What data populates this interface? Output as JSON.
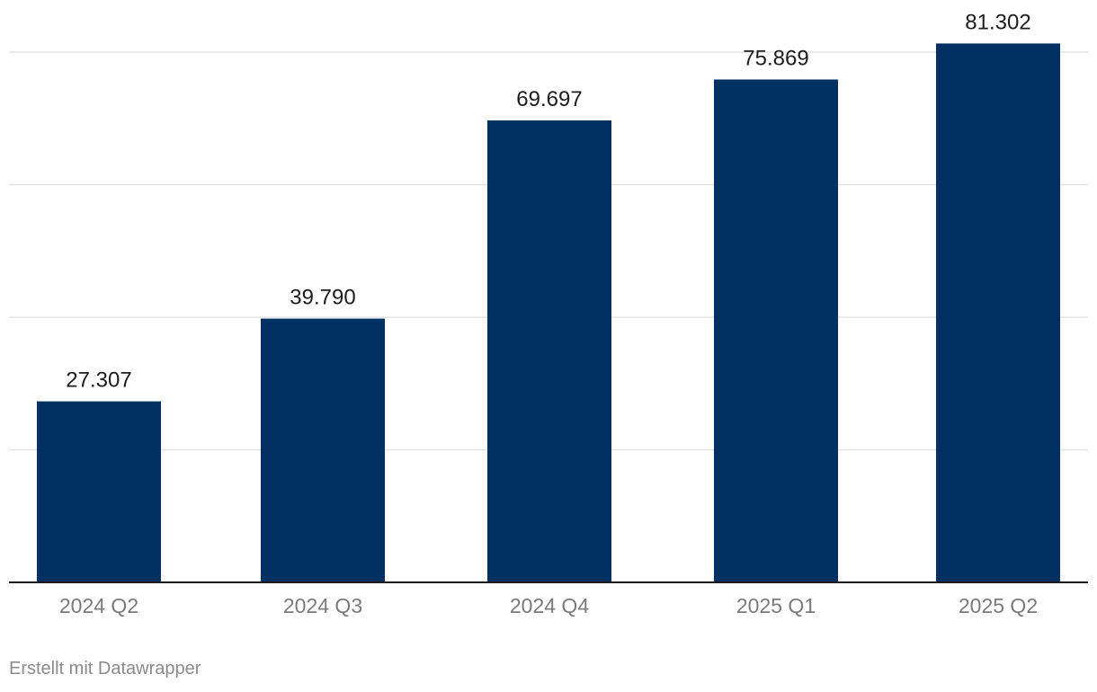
{
  "chart_data": {
    "type": "bar",
    "title": "",
    "xlabel": "",
    "ylabel": "",
    "categories": [
      "2024 Q2",
      "2024 Q3",
      "2024 Q4",
      "2025 Q1",
      "2025 Q2"
    ],
    "values": [
      27307,
      39790,
      69697,
      75869,
      81302
    ],
    "value_labels": [
      "27.307",
      "39.790",
      "69.697",
      "75.869",
      "81.302"
    ],
    "ylim": [
      0,
      80000
    ],
    "gridlines": [
      20000,
      40000,
      60000,
      80000
    ],
    "grid": true,
    "bar_color": "#002f62"
  },
  "footer": {
    "credit": "Erstellt mit Datawrapper"
  }
}
